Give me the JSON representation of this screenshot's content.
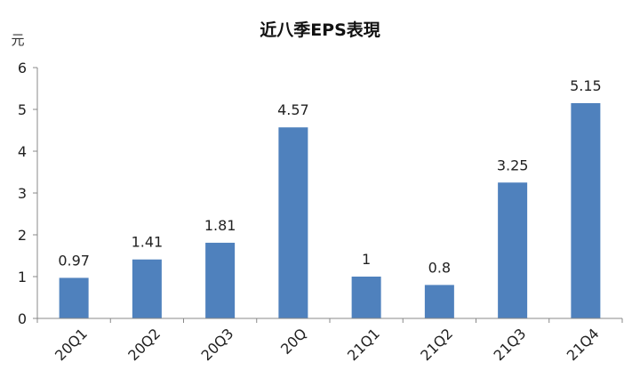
{
  "chart_data": {
    "type": "bar",
    "title": "近八季EPS表現",
    "ylabel": "元",
    "categories": [
      "20Q1",
      "20Q2",
      "20Q3",
      "20Q",
      "21Q1",
      "21Q2",
      "21Q3",
      "21Q4"
    ],
    "values": [
      0.97,
      1.41,
      1.81,
      4.57,
      1,
      0.8,
      3.25,
      5.15
    ],
    "data_labels": [
      "0.97",
      "1.41",
      "1.81",
      "4.57",
      "1",
      "0.8",
      "3.25",
      "5.15"
    ],
    "ylim": [
      0,
      6
    ],
    "yticks": [
      "0",
      "1",
      "2",
      "3",
      "4",
      "5",
      "6"
    ],
    "grid": false,
    "bar_color": "#4f81bd"
  }
}
